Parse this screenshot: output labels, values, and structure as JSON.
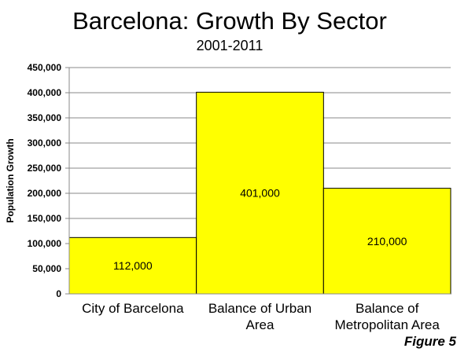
{
  "chart_data": {
    "type": "bar",
    "title": "Barcelona: Growth By Sector",
    "subtitle": "2001-2011",
    "ylabel": "Population Growth",
    "xlabel": "",
    "categories": [
      "City of Barcelona",
      "Balance of Urban Area",
      "Balance of Metropolitan Area"
    ],
    "category_lines": [
      [
        "City of Barcelona"
      ],
      [
        "Balance of Urban",
        "Area"
      ],
      [
        "Balance of",
        "Metropolitan Area"
      ]
    ],
    "values": [
      112000,
      401000,
      210000
    ],
    "data_labels": [
      "112,000",
      "401,000",
      "210,000"
    ],
    "ylim": [
      0,
      450000
    ],
    "yticks": [
      0,
      50000,
      100000,
      150000,
      200000,
      250000,
      300000,
      350000,
      400000,
      450000
    ],
    "ytick_labels": [
      "0",
      "50,000",
      "100,000",
      "150,000",
      "200,000",
      "250,000",
      "300,000",
      "350,000",
      "400,000",
      "450,000"
    ],
    "grid": true,
    "bar_color": "#ffff00",
    "bar_edge_color": "#000000",
    "grid_color": "#888888",
    "figure_note": "Figure 5"
  }
}
